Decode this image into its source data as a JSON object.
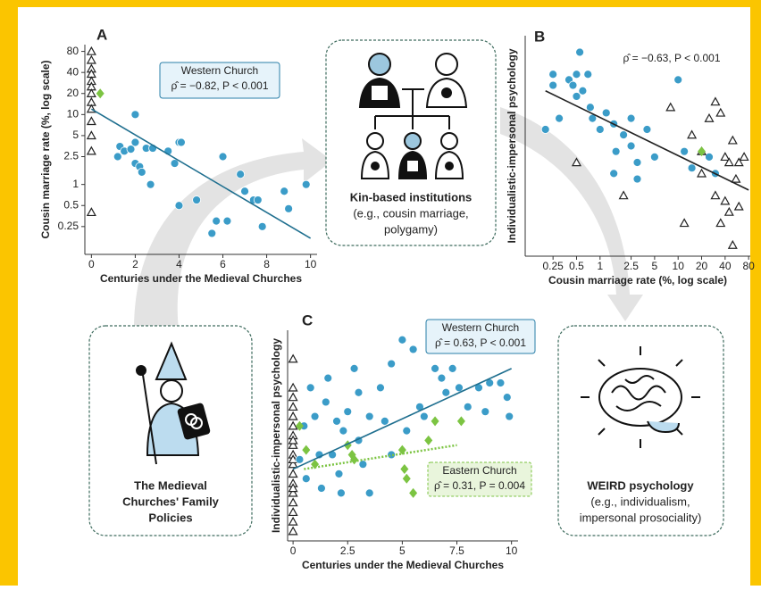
{
  "chart_data": [
    {
      "type": "scatter",
      "label": "A",
      "xlabel": "Centuries under the Medieval Churches",
      "ylabel": "Cousin marriage rate (%, log scale)",
      "xlim": [
        -0.3,
        10.3
      ],
      "xticks": [
        0,
        2,
        4,
        6,
        8,
        10
      ],
      "ylim": [
        0.1,
        100
      ],
      "yscale": "log",
      "yticks": [
        0.25,
        0.5,
        1,
        2.5,
        5,
        10,
        20,
        40,
        80
      ],
      "series": [
        {
          "marker": "triangle",
          "color": "#222222",
          "x": [
            0,
            0,
            0,
            0,
            0,
            0,
            0,
            0,
            0,
            0,
            0,
            0,
            0
          ],
          "values": [
            80,
            60,
            45,
            38,
            30,
            25,
            20,
            15,
            12,
            8,
            5,
            3,
            0.4
          ]
        },
        {
          "marker": "circle",
          "color": "#3b9cc8",
          "x": [
            2,
            1.3,
            1.2,
            1.5,
            2,
            1.8,
            2,
            2.2,
            2.3,
            2.5,
            2.8,
            2.7,
            3.5,
            4,
            4.1,
            3.8,
            4,
            4.8,
            6,
            5.7,
            5.5,
            6.2,
            6.8,
            7,
            7.4,
            7.6,
            7.8,
            8.8,
            9,
            9.8
          ],
          "values": [
            10,
            3.5,
            2.5,
            3,
            4,
            3.2,
            2,
            1.8,
            1.5,
            3.3,
            3.3,
            1,
            3,
            4,
            4,
            2,
            0.5,
            0.6,
            2.5,
            0.3,
            0.2,
            0.3,
            1.4,
            0.8,
            0.6,
            0.6,
            0.25,
            0.8,
            0.45,
            1
          ]
        },
        {
          "marker": "diamond",
          "color": "#7cc442",
          "x": [
            0.4
          ],
          "values": [
            20
          ]
        }
      ],
      "fits": [
        {
          "color": "#1f6f8f",
          "style": "solid",
          "x": [
            0,
            10
          ],
          "values": [
            12,
            0.17
          ]
        }
      ],
      "annotations": [
        {
          "color": "#2a7fa8",
          "fill": "#e6f3fa",
          "lines": [
            "Western Church",
            "ρ̂ = −0.82,  P < 0.001"
          ]
        }
      ]
    },
    {
      "type": "scatter",
      "label": "B",
      "xlabel": "Cousin marriage rate (%, log scale)",
      "ylabel": "Individualistic-impersonal psychology",
      "xlim": [
        0.11,
        84
      ],
      "xscale": "log",
      "xticks": [
        0.25,
        0.5,
        1,
        2.5,
        5,
        10,
        20,
        40,
        80
      ],
      "ylim": [
        -2,
        2
      ],
      "series": [
        {
          "marker": "circle",
          "color": "#3b9cc8",
          "x": [
            0.2,
            0.25,
            0.25,
            0.3,
            0.4,
            0.45,
            0.5,
            0.5,
            0.55,
            0.6,
            0.7,
            0.75,
            0.8,
            1,
            1.2,
            1.5,
            1.5,
            1.6,
            2,
            2.5,
            2.5,
            3,
            3,
            4,
            5,
            10,
            12,
            15,
            25,
            30
          ],
          "values": [
            0.3,
            1.3,
            1.1,
            0.5,
            1.2,
            1.1,
            1.3,
            0.9,
            1.7,
            1.0,
            1.3,
            0.7,
            0.5,
            0.3,
            0.6,
            0.4,
            -0.5,
            -0.1,
            0.2,
            0.5,
            0.0,
            -0.3,
            -0.6,
            0.3,
            -0.2,
            1.2,
            -0.1,
            -0.4,
            -0.2,
            -0.5
          ]
        },
        {
          "marker": "triangle",
          "color": "#222222",
          "x": [
            8,
            15,
            20,
            25,
            30,
            35,
            40,
            45,
            50,
            55,
            60,
            30,
            40,
            45,
            60,
            20,
            12,
            35,
            50,
            0.5,
            2,
            70
          ],
          "values": [
            0.7,
            0.2,
            -0.1,
            0.5,
            0.8,
            0.6,
            -0.2,
            -0.3,
            0.1,
            -0.6,
            -0.3,
            -0.9,
            -1.0,
            -1.2,
            -1.1,
            -0.5,
            -1.4,
            -1.4,
            -1.8,
            -0.3,
            -0.9,
            -0.2
          ]
        },
        {
          "marker": "diamond",
          "color": "#7cc442",
          "x": [
            20
          ],
          "values": [
            -0.1
          ]
        }
      ],
      "fits": [
        {
          "color": "#222222",
          "style": "solid",
          "x": [
            0.2,
            80
          ],
          "values": [
            1.0,
            -0.8
          ]
        }
      ],
      "annotations": [
        {
          "lines": [
            "ρ̂ = −0.63, P < 0.001"
          ]
        }
      ]
    },
    {
      "type": "scatter",
      "label": "C",
      "xlabel": "Centuries under the Medieval Churches",
      "ylabel": "Individualistic-impersonal psychology",
      "xlim": [
        -0.25,
        10.3
      ],
      "xticks": [
        0,
        2.5,
        5,
        7.5,
        10
      ],
      "ylim": [
        -2.2,
        2.2
      ],
      "series": [
        {
          "marker": "triangle",
          "color": "#222222",
          "x": [
            0,
            0,
            0,
            0,
            0,
            0,
            0,
            0,
            0,
            0,
            0,
            0,
            0,
            0,
            0,
            0,
            0,
            0,
            0,
            0
          ],
          "values": [
            1.6,
            1.0,
            0.6,
            0.4,
            0.2,
            0.0,
            -0.2,
            -0.4,
            -0.6,
            -0.8,
            -1.0,
            -1.2,
            -1.4,
            -1.6,
            -1.8,
            -2.0,
            0.8,
            -0.1,
            -0.5,
            -1.1
          ]
        },
        {
          "marker": "circle",
          "color": "#3b9cc8",
          "x": [
            0.3,
            0.5,
            0.6,
            0.8,
            1,
            1.2,
            1.3,
            1.5,
            1.6,
            1.8,
            2,
            2.1,
            2.2,
            2.3,
            2.5,
            2.8,
            3,
            3,
            3.2,
            3.5,
            3.5,
            4,
            4.2,
            4.5,
            4.5,
            5,
            5.2,
            5.5,
            5.8,
            6,
            6.5,
            6.8,
            7,
            7.3,
            7.6,
            8,
            8.5,
            9,
            9.5,
            9.8,
            9.9,
            8.8
          ],
          "values": [
            -0.5,
            0.2,
            -0.9,
            1.0,
            0.4,
            -0.4,
            -1.1,
            0.7,
            1.2,
            -0.4,
            0.3,
            -0.8,
            -1.2,
            0.1,
            0.5,
            1.4,
            -0.1,
            0.9,
            -0.6,
            0.4,
            -1.2,
            1.0,
            0.3,
            1.5,
            -0.4,
            2.0,
            0.1,
            1.8,
            0.6,
            0.4,
            1.4,
            1.2,
            0.9,
            1.4,
            1.0,
            0.6,
            1.0,
            1.1,
            1.1,
            0.8,
            0.4,
            0.5
          ]
        },
        {
          "marker": "diamond",
          "color": "#7cc442",
          "x": [
            0.3,
            0.6,
            1,
            2.5,
            2.7,
            2.8,
            5,
            5.1,
            5.2,
            5.5,
            6.5,
            7.7,
            6.2
          ],
          "values": [
            0.2,
            -0.3,
            -0.6,
            -0.2,
            -0.4,
            -0.5,
            -0.3,
            -0.7,
            -0.9,
            -1.2,
            0.3,
            0.3,
            -0.1
          ]
        }
      ],
      "fits": [
        {
          "color": "#1f6f8f",
          "style": "solid",
          "x": [
            0,
            10
          ],
          "values": [
            -0.7,
            1.4
          ]
        },
        {
          "color": "#7cc442",
          "style": "dotted",
          "x": [
            0.5,
            7.5
          ],
          "values": [
            -0.7,
            -0.2
          ]
        }
      ],
      "annotations": [
        {
          "color": "#2a7fa8",
          "fill": "#e6f3fa",
          "lines": [
            "Western Church",
            "ρ̂ = 0.63,   P < 0.001"
          ]
        },
        {
          "color": "#7cc442",
          "fill": "#e9f5dc",
          "lines": [
            "Eastern Church",
            "ρ̂ = 0.31,   P = 0.004"
          ]
        }
      ]
    }
  ],
  "diagram": {
    "kin": [
      "Kin-based institutions",
      "(e.g., cousin marriage,",
      "polygamy)"
    ],
    "church": [
      "The Medieval",
      "Churches' Family",
      "Policies"
    ],
    "weird": [
      "WEIRD psychology",
      "(e.g., individualism,",
      "impersonal prosociality)"
    ]
  }
}
